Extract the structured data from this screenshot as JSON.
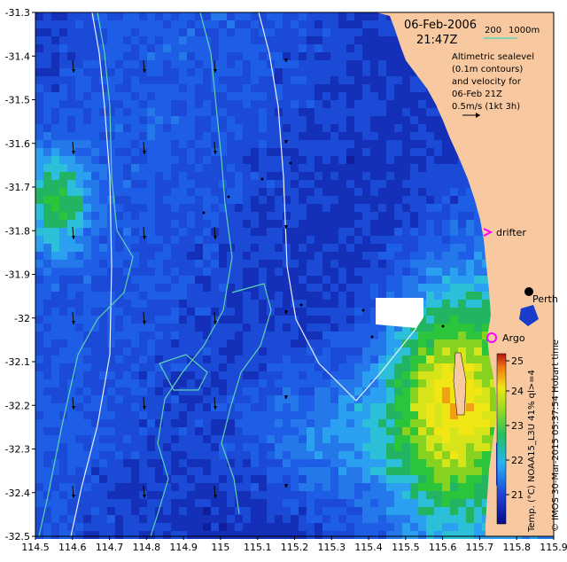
{
  "header": {
    "date": "06-Feb-2006",
    "time": "21:47Z"
  },
  "depth_legend": {
    "label_200": "200",
    "label_1000": "1000m",
    "line_color": "#5fd3b4"
  },
  "description": {
    "lines": [
      "Altimetric sealevel",
      "(0.1m contours)",
      "and velocity for",
      "06-Feb 21Z",
      "0.5m/s (1kt 3h)"
    ]
  },
  "axes": {
    "lat_ticks": [
      "-31.3",
      "-31.4",
      "-31.5",
      "-31.6",
      "-31.7",
      "-31.8",
      "-31.9",
      "-32",
      "-32.1",
      "-32.2",
      "-32.3",
      "-32.4",
      "-32.5"
    ],
    "lon_ticks": [
      "114.5",
      "114.6",
      "114.7",
      "114.8",
      "114.9",
      "115",
      "115.1",
      "115.2",
      "115.3",
      "115.4",
      "115.5",
      "115.6",
      "115.7",
      "115.8",
      "115.9"
    ],
    "lat_range": [
      -32.5,
      -31.3
    ],
    "lon_range": [
      114.5,
      115.9
    ]
  },
  "markers": {
    "drifter_label": "drifter",
    "drifter_color": "#ff00ff",
    "argo_label": "Argo",
    "argo_color": "#ff00ff",
    "city_label": "Perth"
  },
  "colorbar": {
    "ticks": [
      "25",
      "24",
      "23",
      "22",
      "21"
    ],
    "range": [
      20.3,
      25.0
    ],
    "label": "Temp. (°C) NOAA15_L3U 41% ql>=4"
  },
  "credit": "© IMOS 30-Mar-2015 05:37:54 Hobart time",
  "colors": {
    "land": "#f8c9a0",
    "deep_blue": "#101e9c",
    "mid_blue": "#1a50dc",
    "light_blue": "#2fa8ee",
    "green": "#22b43e",
    "yellow": "#d8e61a",
    "orange": "#f08c14"
  }
}
